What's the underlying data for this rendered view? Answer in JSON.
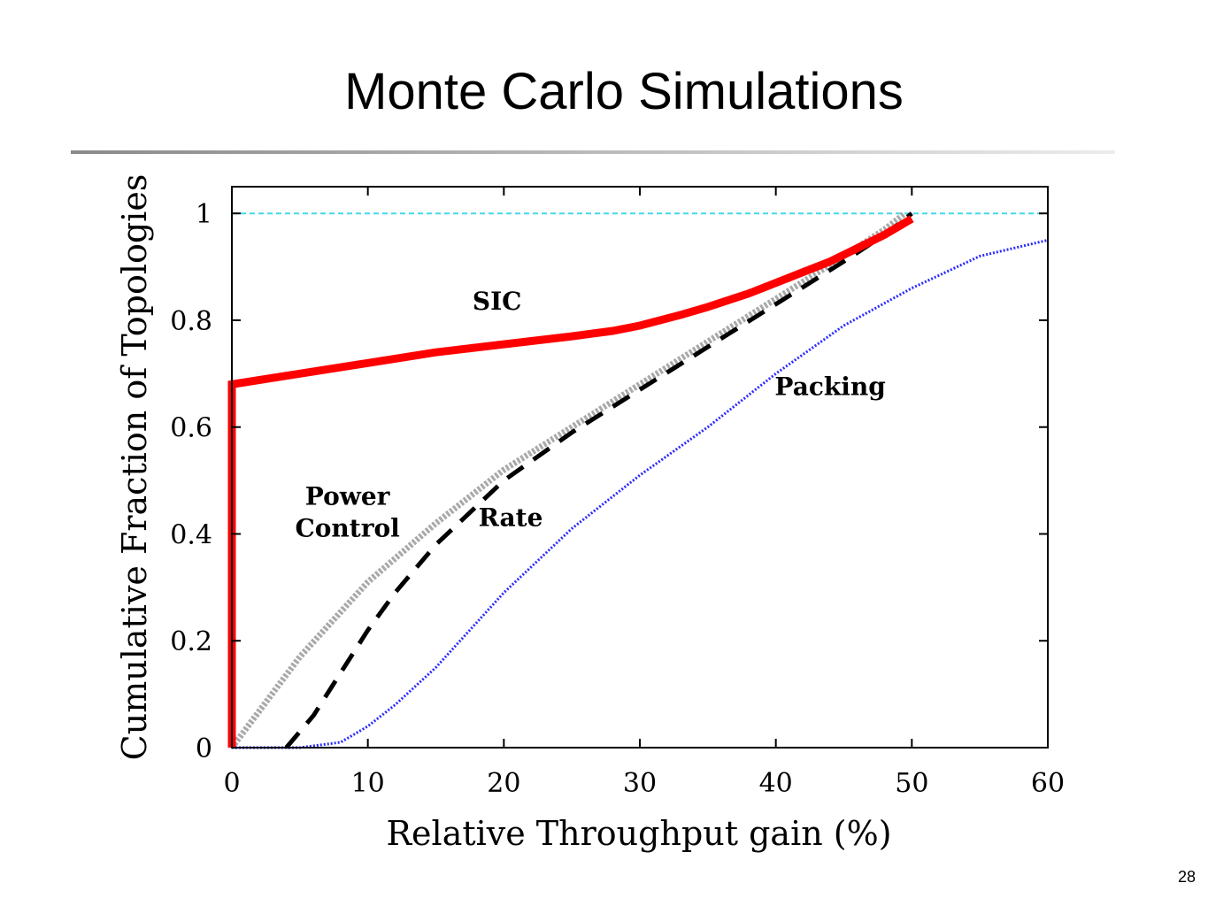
{
  "slide": {
    "title": "Monte Carlo Simulations",
    "page_number": "28"
  },
  "chart_data": {
    "type": "line",
    "xlabel": "Relative Throughput gain (%)",
    "ylabel": "Cumulative Fraction of Topologies",
    "xlim": [
      0,
      60
    ],
    "ylim": [
      0,
      1.05
    ],
    "xticks": [
      0,
      10,
      20,
      30,
      40,
      50,
      60
    ],
    "yticks": [
      0,
      0.2,
      0.4,
      0.6,
      0.8,
      1
    ],
    "ytick_labels": [
      "0",
      "0.2",
      "0.4",
      "0.6",
      "0.8",
      "1"
    ],
    "grid": false,
    "reference_line": {
      "y": 1.0,
      "color": "#44d8e8"
    },
    "annotations": [
      {
        "text": "SIC",
        "x": 19.5,
        "y": 0.82
      },
      {
        "text": "Packing",
        "x": 44,
        "y": 0.66
      },
      {
        "text": "Power",
        "x": 8.5,
        "y": 0.455
      },
      {
        "text": "Control",
        "x": 8.5,
        "y": 0.395
      },
      {
        "text": "Rate",
        "x": 20.5,
        "y": 0.415
      }
    ],
    "series": [
      {
        "name": "SIC",
        "color": "#ff0000",
        "x": [
          0,
          0,
          0,
          0,
          5,
          10,
          15,
          20,
          25,
          28,
          30,
          33,
          35,
          38,
          40,
          42,
          44,
          46,
          48,
          50
        ],
        "y": [
          0,
          0.3,
          0.6,
          0.68,
          0.7,
          0.72,
          0.74,
          0.755,
          0.77,
          0.78,
          0.79,
          0.81,
          0.825,
          0.85,
          0.87,
          0.89,
          0.91,
          0.935,
          0.96,
          0.99
        ]
      },
      {
        "name": "Power Control",
        "color": "#a9a9a9",
        "x": [
          0,
          5,
          10,
          15,
          20,
          25,
          30,
          35,
          40,
          45,
          48,
          49.5
        ],
        "y": [
          0,
          0.17,
          0.31,
          0.42,
          0.52,
          0.6,
          0.68,
          0.76,
          0.84,
          0.92,
          0.97,
          1.0
        ]
      },
      {
        "name": "Rate",
        "color": "#000000",
        "x": [
          4,
          6,
          8,
          10,
          12,
          15,
          20,
          25,
          30,
          35,
          40,
          45,
          48,
          50
        ],
        "y": [
          0,
          0.06,
          0.14,
          0.22,
          0.29,
          0.38,
          0.5,
          0.59,
          0.67,
          0.75,
          0.83,
          0.91,
          0.96,
          1.0
        ]
      },
      {
        "name": "Packing",
        "color": "#2b2bff",
        "x": [
          0,
          5,
          8,
          10,
          12,
          15,
          20,
          25,
          30,
          35,
          40,
          45,
          50,
          55,
          60
        ],
        "y": [
          0,
          0.0,
          0.01,
          0.04,
          0.08,
          0.15,
          0.29,
          0.41,
          0.51,
          0.6,
          0.7,
          0.79,
          0.86,
          0.92,
          0.95
        ]
      }
    ]
  }
}
